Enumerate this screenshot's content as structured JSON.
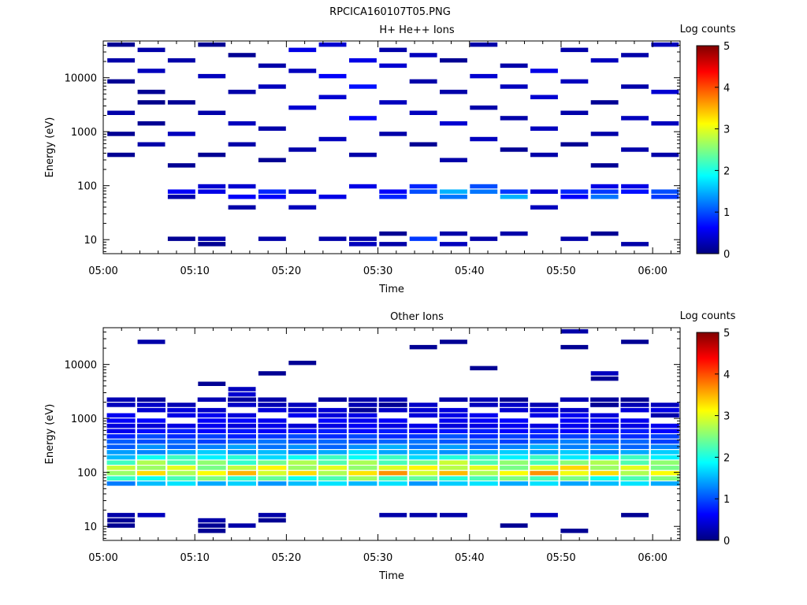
{
  "figure_title": "RPCICA160107T05.PNG",
  "colorscale": [
    "#000080",
    "#0000ff",
    "#0080ff",
    "#00ffff",
    "#80ff80",
    "#ffff00",
    "#ff8000",
    "#ff0000",
    "#800000"
  ],
  "chart_data": [
    {
      "type": "heatmap",
      "title": "H+ He++ Ions",
      "xlabel": "Time",
      "ylabel": "Energy (eV)",
      "xticks": [
        "05:00",
        "05:10",
        "05:20",
        "05:30",
        "05:40",
        "05:50",
        "06:00"
      ],
      "xlim_minutes": [
        0,
        63
      ],
      "yscale": "log",
      "ylim": [
        5.5,
        48000
      ],
      "yticks": [
        "10",
        "100",
        "1000",
        "10000"
      ],
      "colorbar": {
        "label": "Log counts",
        "range": [
          0,
          5
        ],
        "ticks": [
          "0",
          "1",
          "2",
          "3",
          "4",
          "5"
        ]
      },
      "time_bins": 19,
      "energy_bins": 40,
      "cells": [
        [
          1,
          28,
          0.05
        ],
        [
          1,
          30,
          0.1
        ],
        [
          2,
          2,
          0.1
        ],
        [
          2,
          10,
          0.2
        ],
        [
          2,
          11,
          0.6
        ],
        [
          3,
          1,
          0.1
        ],
        [
          3,
          2,
          0.2
        ],
        [
          3,
          11,
          0.5
        ],
        [
          3,
          12,
          0.4
        ],
        [
          4,
          8,
          0.2
        ],
        [
          4,
          10,
          0.6
        ],
        [
          4,
          12,
          0.4
        ],
        [
          5,
          2,
          0.2
        ],
        [
          5,
          10,
          0.6
        ],
        [
          5,
          11,
          0.8
        ],
        [
          6,
          8,
          0.3
        ],
        [
          6,
          11,
          0.4
        ],
        [
          7,
          2,
          0.2
        ],
        [
          7,
          10,
          0.5
        ],
        [
          8,
          1,
          0.3
        ],
        [
          8,
          2,
          0.2
        ],
        [
          8,
          12,
          0.5
        ],
        [
          9,
          1,
          0.2
        ],
        [
          9,
          3,
          0.1
        ],
        [
          9,
          10,
          0.8
        ],
        [
          9,
          11,
          0.6
        ],
        [
          10,
          2,
          0.9
        ],
        [
          10,
          11,
          1.0
        ],
        [
          10,
          12,
          0.8
        ],
        [
          11,
          1,
          0.3
        ],
        [
          11,
          3,
          0.2
        ],
        [
          11,
          10,
          1.2
        ],
        [
          11,
          11,
          1.5
        ],
        [
          12,
          2,
          0.2
        ],
        [
          12,
          11,
          1.2
        ],
        [
          12,
          12,
          1.0
        ],
        [
          13,
          3,
          0.2
        ],
        [
          13,
          10,
          1.5
        ],
        [
          13,
          11,
          0.9
        ],
        [
          14,
          8,
          0.3
        ],
        [
          14,
          11,
          0.4
        ],
        [
          15,
          2,
          0.2
        ],
        [
          15,
          10,
          0.6
        ],
        [
          15,
          11,
          0.8
        ],
        [
          16,
          3,
          0.1
        ],
        [
          16,
          10,
          1.2
        ],
        [
          16,
          11,
          0.9
        ],
        [
          16,
          12,
          0.5
        ],
        [
          17,
          1,
          0.2
        ],
        [
          17,
          11,
          0.7
        ],
        [
          17,
          12,
          0.5
        ],
        [
          18,
          10,
          0.9
        ],
        [
          18,
          11,
          1.0
        ],
        [
          0,
          18,
          0.1
        ],
        [
          0,
          22,
          0.1
        ],
        [
          0,
          26,
          0.2
        ],
        [
          0,
          32,
          0.1
        ],
        [
          0,
          36,
          0.2
        ],
        [
          0,
          39,
          0.1
        ],
        [
          1,
          20,
          0.2
        ],
        [
          1,
          24,
          0.1
        ],
        [
          1,
          34,
          0.3
        ],
        [
          1,
          38,
          0.2
        ],
        [
          2,
          16,
          0.1
        ],
        [
          2,
          22,
          0.3
        ],
        [
          2,
          28,
          0.1
        ],
        [
          2,
          36,
          0.2
        ],
        [
          3,
          18,
          0.1
        ],
        [
          3,
          26,
          0.2
        ],
        [
          3,
          33,
          0.3
        ],
        [
          3,
          39,
          0.1
        ],
        [
          4,
          20,
          0.2
        ],
        [
          4,
          24,
          0.3
        ],
        [
          4,
          30,
          0.2
        ],
        [
          4,
          37,
          0.1
        ],
        [
          5,
          17,
          0.1
        ],
        [
          5,
          23,
          0.2
        ],
        [
          5,
          31,
          0.3
        ],
        [
          5,
          35,
          0.2
        ],
        [
          6,
          19,
          0.2
        ],
        [
          6,
          27,
          0.4
        ],
        [
          6,
          34,
          0.3
        ],
        [
          6,
          38,
          0.5
        ],
        [
          7,
          21,
          0.3
        ],
        [
          7,
          29,
          0.4
        ],
        [
          7,
          33,
          0.6
        ],
        [
          7,
          39,
          0.4
        ],
        [
          8,
          18,
          0.2
        ],
        [
          8,
          25,
          0.6
        ],
        [
          8,
          31,
          0.7
        ],
        [
          8,
          36,
          0.5
        ],
        [
          9,
          22,
          0.2
        ],
        [
          9,
          28,
          0.3
        ],
        [
          9,
          35,
          0.4
        ],
        [
          9,
          38,
          0.2
        ],
        [
          10,
          20,
          0.1
        ],
        [
          10,
          26,
          0.3
        ],
        [
          10,
          32,
          0.2
        ],
        [
          10,
          37,
          0.3
        ],
        [
          11,
          17,
          0.2
        ],
        [
          11,
          24,
          0.4
        ],
        [
          11,
          30,
          0.2
        ],
        [
          11,
          36,
          0.1
        ],
        [
          12,
          21,
          0.3
        ],
        [
          12,
          27,
          0.2
        ],
        [
          12,
          33,
          0.4
        ],
        [
          12,
          39,
          0.2
        ],
        [
          13,
          19,
          0.1
        ],
        [
          13,
          25,
          0.2
        ],
        [
          13,
          31,
          0.3
        ],
        [
          13,
          35,
          0.2
        ],
        [
          14,
          18,
          0.2
        ],
        [
          14,
          23,
          0.3
        ],
        [
          14,
          29,
          0.4
        ],
        [
          14,
          34,
          0.5
        ],
        [
          15,
          20,
          0.1
        ],
        [
          15,
          26,
          0.2
        ],
        [
          15,
          32,
          0.3
        ],
        [
          15,
          38,
          0.2
        ],
        [
          16,
          16,
          0.1
        ],
        [
          16,
          22,
          0.2
        ],
        [
          16,
          28,
          0.1
        ],
        [
          16,
          36,
          0.3
        ],
        [
          17,
          19,
          0.2
        ],
        [
          17,
          25,
          0.3
        ],
        [
          17,
          31,
          0.2
        ],
        [
          17,
          37,
          0.2
        ],
        [
          18,
          18,
          0.2
        ],
        [
          18,
          24,
          0.3
        ],
        [
          18,
          30,
          0.4
        ],
        [
          18,
          39,
          0.3
        ]
      ]
    },
    {
      "type": "heatmap",
      "title": "Other Ions",
      "xlabel": "Time",
      "ylabel": "Energy (eV)",
      "xticks": [
        "05:00",
        "05:10",
        "05:20",
        "05:30",
        "05:40",
        "05:50",
        "06:00"
      ],
      "xlim_minutes": [
        0,
        63
      ],
      "yscale": "log",
      "ylim": [
        5.5,
        48000
      ],
      "yticks": [
        "10",
        "100",
        "1000",
        "10000"
      ],
      "colorbar": {
        "label": "Log counts",
        "range": [
          0,
          5
        ],
        "ticks": [
          "0",
          "1",
          "2",
          "3",
          "4",
          "5"
        ]
      },
      "time_bins": 19,
      "energy_bins": 40,
      "spectrum_profile": [
        [
          10,
          1.6
        ],
        [
          11,
          2.3
        ],
        [
          12,
          3.2
        ],
        [
          13,
          2.9
        ],
        [
          14,
          2.5
        ],
        [
          15,
          2.0
        ],
        [
          16,
          1.5
        ],
        [
          17,
          1.3
        ],
        [
          18,
          1.1
        ],
        [
          19,
          0.9
        ],
        [
          20,
          0.7
        ],
        [
          21,
          0.5
        ]
      ],
      "column_scale": [
        0.9,
        1.0,
        1.0,
        1.0,
        1.0,
        1.0,
        1.0,
        1.0,
        1.05,
        1.05,
        1.0,
        1.05,
        1.0,
        1.0,
        1.05,
        1.05,
        1.0,
        1.0,
        1.0
      ],
      "sparse_cells": [
        [
          0,
          2,
          0.1
        ],
        [
          0,
          3,
          0.1
        ],
        [
          0,
          4,
          0.2
        ],
        [
          1,
          4,
          0.3
        ],
        [
          1,
          37,
          0.2
        ],
        [
          3,
          1,
          0.1
        ],
        [
          3,
          2,
          0.1
        ],
        [
          3,
          3,
          0.2
        ],
        [
          3,
          29,
          0.1
        ],
        [
          4,
          2,
          0.2
        ],
        [
          4,
          27,
          0.4
        ],
        [
          4,
          28,
          0.3
        ],
        [
          5,
          3,
          0.1
        ],
        [
          5,
          4,
          0.2
        ],
        [
          5,
          31,
          0.1
        ],
        [
          6,
          33,
          0.1
        ],
        [
          8,
          24,
          0.1
        ],
        [
          9,
          4,
          0.2
        ],
        [
          9,
          25,
          0.1
        ],
        [
          10,
          4,
          0.2
        ],
        [
          10,
          36,
          0.1
        ],
        [
          11,
          4,
          0.2
        ],
        [
          11,
          37,
          0.1
        ],
        [
          12,
          32,
          0.1
        ],
        [
          13,
          2,
          0.1
        ],
        [
          13,
          26,
          0.1
        ],
        [
          14,
          4,
          0.3
        ],
        [
          15,
          1,
          0.1
        ],
        [
          15,
          36,
          0.1
        ],
        [
          15,
          39,
          0.2
        ],
        [
          16,
          25,
          0.1
        ],
        [
          16,
          30,
          0.1
        ],
        [
          16,
          31,
          0.3
        ],
        [
          17,
          4,
          0.1
        ],
        [
          17,
          26,
          0.1
        ],
        [
          17,
          37,
          0.1
        ],
        [
          18,
          23,
          0.2
        ],
        [
          18,
          24,
          0.5
        ]
      ]
    }
  ]
}
